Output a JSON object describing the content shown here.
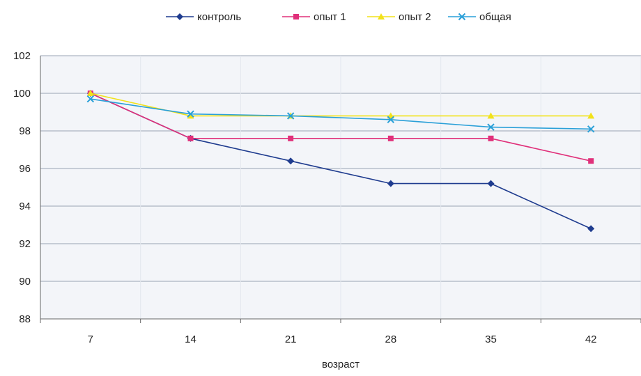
{
  "chart_data": {
    "type": "line",
    "xlabel": "возраст",
    "ylabel": "",
    "x": [
      "7",
      "14",
      "21",
      "28",
      "35",
      "42"
    ],
    "ylim": [
      88,
      102
    ],
    "yticks": [
      88,
      90,
      92,
      94,
      96,
      98,
      100,
      102
    ],
    "grid": true,
    "legend_position": "top",
    "series": [
      {
        "name": "контроль",
        "color": "#1f3c8f",
        "marker": "diamond",
        "values": [
          100,
          97.6,
          96.4,
          95.2,
          95.2,
          92.8
        ]
      },
      {
        "name": "опыт 1",
        "color": "#e0307a",
        "marker": "square",
        "values": [
          100,
          97.6,
          97.6,
          97.6,
          97.6,
          96.4
        ]
      },
      {
        "name": "опыт 2",
        "color": "#f2e21a",
        "marker": "triangle",
        "values": [
          100,
          98.8,
          98.8,
          98.8,
          98.8,
          98.8
        ]
      },
      {
        "name": "общая",
        "color": "#2aa0d8",
        "marker": "x",
        "values": [
          99.7,
          98.9,
          98.8,
          98.6,
          98.2,
          98.1
        ]
      }
    ]
  }
}
